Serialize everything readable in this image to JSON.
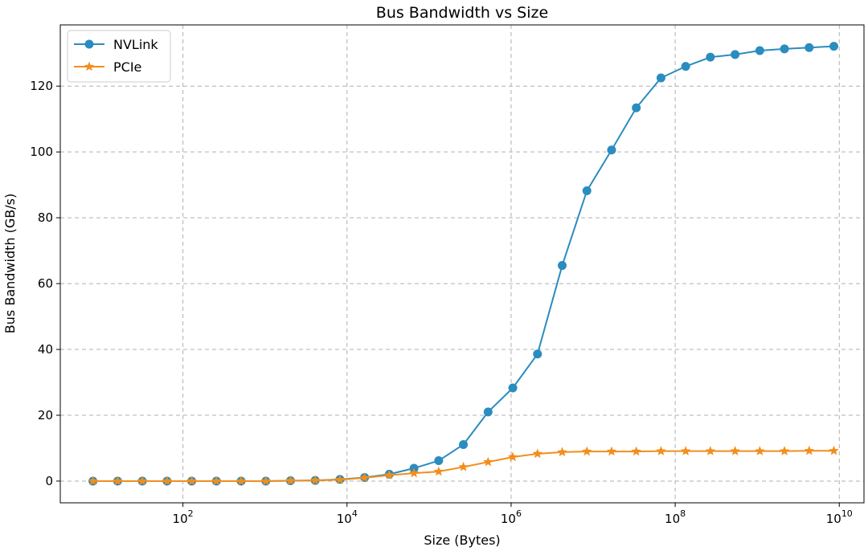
{
  "chart_data": {
    "type": "line",
    "title": "Bus Bandwidth vs Size",
    "xlabel": "Size (Bytes)",
    "ylabel": "Bus Bandwidth (GB/s)",
    "x_scale": "log",
    "xlim": [
      3.2,
      20000000000
    ],
    "ylim": [
      -6.6,
      138.6
    ],
    "grid": true,
    "legend_position": "top-left",
    "x_ticks": [
      {
        "base": "10",
        "exp": "2",
        "value": 100
      },
      {
        "base": "10",
        "exp": "4",
        "value": 10000
      },
      {
        "base": "10",
        "exp": "6",
        "value": 1000000
      },
      {
        "base": "10",
        "exp": "8",
        "value": 100000000
      },
      {
        "base": "10",
        "exp": "10",
        "value": 10000000000
      }
    ],
    "y_ticks": [
      "0",
      "20",
      "40",
      "60",
      "80",
      "100",
      "120"
    ],
    "x": [
      8,
      16,
      32,
      64,
      128,
      256,
      512,
      1024,
      2048,
      4096,
      8192,
      16384,
      32768,
      65536,
      131072,
      262144,
      524288,
      1048576,
      2097152,
      4194304,
      8388608,
      16777216,
      33554432,
      67108864,
      134217728,
      268435456,
      536870912,
      1073741824,
      2147483648,
      4294967296,
      8589934592
    ],
    "series": [
      {
        "name": "NVLink",
        "color": "#2a8cbf",
        "marker": "circle",
        "values": [
          0.0,
          0.0,
          0.0,
          0.0,
          0.0,
          0.0,
          0.0,
          0.0,
          0.1,
          0.2,
          0.5,
          1.1,
          2.1,
          3.9,
          6.2,
          11.1,
          21.0,
          28.3,
          38.6,
          65.5,
          88.2,
          100.6,
          113.4,
          122.5,
          126.0,
          128.8,
          129.6,
          130.8,
          131.3,
          131.7,
          132.1
        ]
      },
      {
        "name": "PCIe",
        "color": "#f28e1c",
        "marker": "star",
        "values": [
          0.0,
          0.0,
          0.0,
          0.0,
          0.0,
          0.0,
          0.0,
          0.0,
          0.1,
          0.2,
          0.4,
          1.0,
          1.8,
          2.4,
          2.9,
          4.3,
          5.8,
          7.3,
          8.3,
          8.8,
          9.0,
          9.0,
          9.0,
          9.1,
          9.1,
          9.1,
          9.1,
          9.1,
          9.1,
          9.2,
          9.2
        ]
      }
    ]
  }
}
